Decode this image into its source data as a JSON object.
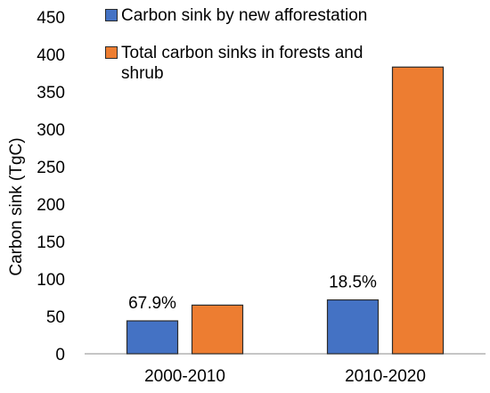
{
  "chart_data": {
    "type": "bar",
    "title": "",
    "xlabel": "",
    "ylabel": "Carbon sink (TgC)",
    "ylim": [
      0,
      450
    ],
    "yticks": [
      0,
      50,
      100,
      150,
      200,
      250,
      300,
      350,
      400,
      450
    ],
    "categories": [
      "2000-2010",
      "2010-2020"
    ],
    "series": [
      {
        "name": "Carbon sink by new afforestation",
        "color": "#4472C4",
        "values": [
          44,
          72
        ],
        "data_labels": [
          "67.9%",
          "18.5%"
        ]
      },
      {
        "name": "Total carbon sinks in forests and shrub",
        "color": "#ED7D31",
        "values": [
          65,
          383
        ]
      }
    ],
    "grid": false,
    "legend_position": "top-left"
  }
}
